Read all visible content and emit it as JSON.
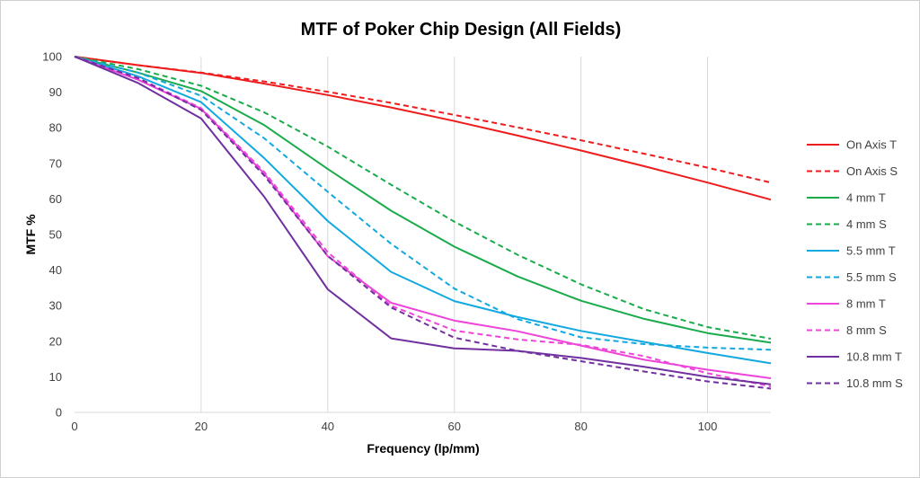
{
  "chart_data": {
    "type": "line",
    "title": "MTF of Poker Chip Design (All Fields)",
    "xlabel": "Frequency (lp/mm)",
    "ylabel": "MTF %",
    "xlim": [
      0,
      110
    ],
    "ylim": [
      0,
      100
    ],
    "xticks": [
      0,
      20,
      40,
      60,
      80,
      100
    ],
    "yticks": [
      0,
      10,
      20,
      30,
      40,
      50,
      60,
      70,
      80,
      90,
      100
    ],
    "grid": "vertical",
    "legend": "right",
    "x": [
      0,
      10,
      20,
      30,
      40,
      50,
      60,
      70,
      80,
      90,
      100,
      110
    ],
    "series": [
      {
        "name": "On Axis T",
        "color": "#ee1c1c",
        "dash": false,
        "values": [
          100,
          97.6,
          95.4,
          92.4,
          89.2,
          85.7,
          81.9,
          77.8,
          73.6,
          69.2,
          64.6,
          59.8
        ]
      },
      {
        "name": "On Axis S",
        "color": "#ee1c1c",
        "dash": true,
        "values": [
          100,
          97.6,
          95.5,
          93,
          90.1,
          87,
          83.6,
          80.1,
          76.5,
          72.7,
          68.8,
          64.6
        ]
      },
      {
        "name": "4 mm T",
        "color": "#1aab4b",
        "dash": false,
        "values": [
          100,
          95.5,
          90.3,
          80.7,
          68.4,
          56.7,
          46.6,
          38.2,
          31.4,
          26.3,
          22.3,
          19.6
        ]
      },
      {
        "name": "4 mm S",
        "color": "#1aab4b",
        "dash": true,
        "values": [
          100,
          96.5,
          91.8,
          84.3,
          74.7,
          64,
          53.6,
          44.3,
          36,
          29,
          24,
          20.7
        ]
      },
      {
        "name": "5.5 mm T",
        "color": "#12a8e0",
        "dash": false,
        "values": [
          100,
          94.5,
          87.2,
          71.4,
          53.8,
          39.5,
          31.3,
          26.8,
          22.9,
          19.8,
          16.7,
          13.8
        ]
      },
      {
        "name": "5.5 mm S",
        "color": "#12a8e0",
        "dash": true,
        "values": [
          100,
          95.5,
          89,
          77,
          62,
          47.4,
          34.8,
          26.2,
          21.1,
          19.2,
          18.2,
          17.6
        ]
      },
      {
        "name": "8 mm T",
        "color": "#ee44d9",
        "dash": false,
        "values": [
          100,
          93.5,
          85.3,
          67,
          43.9,
          30.8,
          25.8,
          22.8,
          18.8,
          14.8,
          12,
          9.6
        ]
      },
      {
        "name": "8 mm S",
        "color": "#ee44d9",
        "dash": true,
        "values": [
          100,
          94,
          85.5,
          67.5,
          45,
          30,
          23,
          20.5,
          19,
          15.8,
          11,
          7.3
        ]
      },
      {
        "name": "10.8 mm T",
        "color": "#7030a0",
        "dash": false,
        "values": [
          100,
          92.6,
          82.6,
          60.5,
          34.6,
          20.8,
          18,
          17.3,
          15.3,
          12.8,
          10,
          7.9
        ]
      },
      {
        "name": "10.8 mm S",
        "color": "#7030a0",
        "dash": true,
        "values": [
          100,
          94,
          85,
          66.5,
          44,
          29.5,
          21,
          17.3,
          14.4,
          11.5,
          8.7,
          6.7
        ]
      }
    ]
  }
}
